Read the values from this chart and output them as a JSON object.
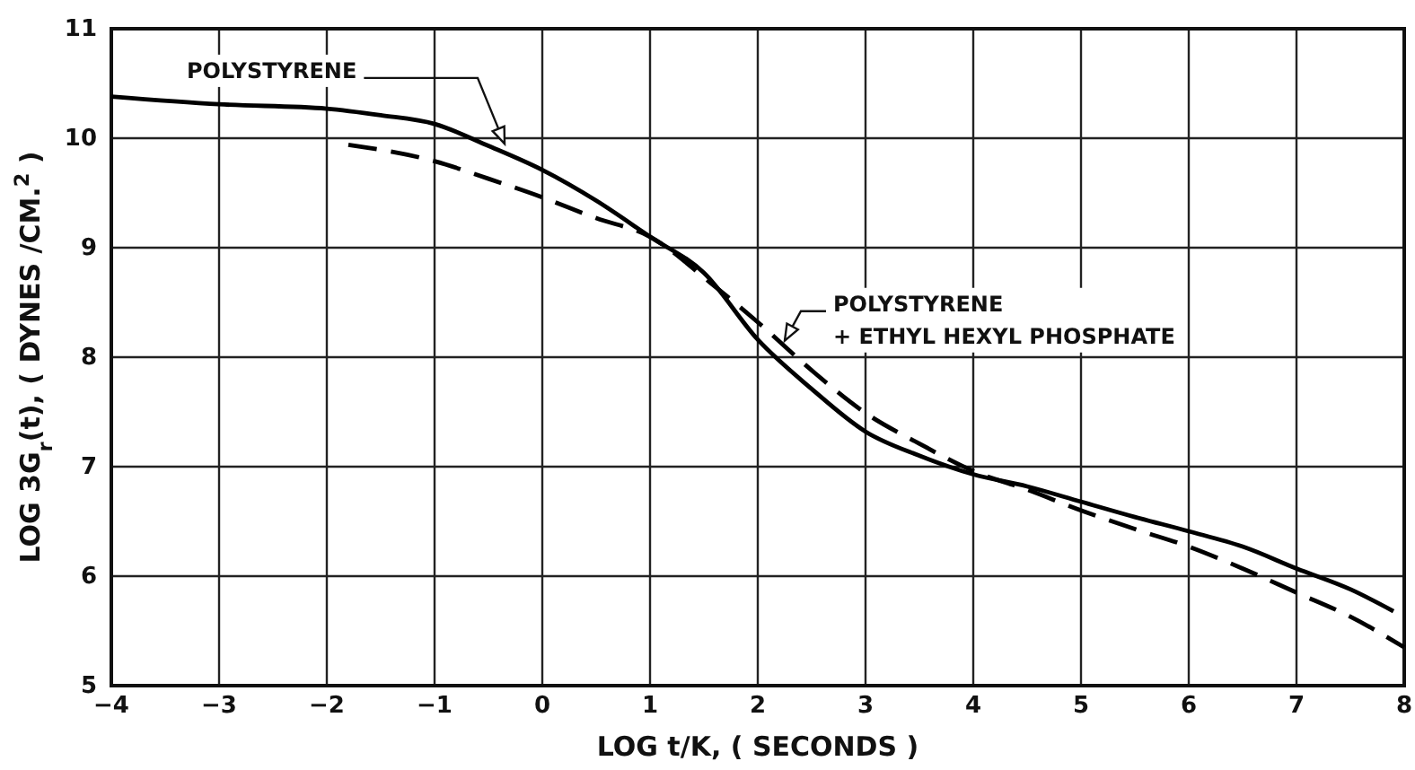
{
  "chart_data": {
    "type": "line",
    "xlabel": "LOG t/K, ( SECONDS )",
    "ylabel": "LOG 3G$_{r}$(t), ( DYNES /CM.$^{2}$ )",
    "xlim": [
      -4,
      8
    ],
    "ylim": [
      5,
      11
    ],
    "xticks": [
      -4,
      -3,
      -2,
      -1,
      0,
      1,
      2,
      3,
      4,
      5,
      6,
      7,
      8
    ],
    "yticks": [
      5,
      6,
      7,
      8,
      9,
      10,
      11
    ],
    "grid": true,
    "series": [
      {
        "name": "POLYSTYRENE",
        "color": "#000000",
        "line_style": "solid",
        "x": [
          -4,
          -3,
          -2,
          -1.5,
          -1,
          -0.5,
          0,
          0.5,
          1,
          1.5,
          2,
          2.5,
          3,
          3.5,
          4,
          4.5,
          5,
          5.5,
          6,
          6.5,
          7,
          7.5,
          7.9
        ],
        "values": [
          10.38,
          10.31,
          10.27,
          10.21,
          10.13,
          9.93,
          9.71,
          9.43,
          9.1,
          8.77,
          8.16,
          7.71,
          7.32,
          7.1,
          6.93,
          6.82,
          6.68,
          6.54,
          6.41,
          6.27,
          6.07,
          5.88,
          5.68
        ]
      },
      {
        "name": "POLYSTYRENE + ETHYL HEXYL PHOSPHATE",
        "color": "#000000",
        "line_style": "dashed",
        "x": [
          -1.8,
          -1,
          -0.5,
          0,
          0.5,
          1,
          1.56,
          2,
          2.5,
          3,
          3.5,
          4,
          4.5,
          5,
          5.5,
          6,
          6.5,
          7,
          7.5,
          8
        ],
        "values": [
          9.94,
          9.79,
          9.63,
          9.46,
          9.27,
          9.1,
          8.68,
          8.32,
          7.88,
          7.49,
          7.21,
          6.96,
          6.79,
          6.6,
          6.43,
          6.27,
          6.07,
          5.85,
          5.63,
          5.35
        ]
      }
    ]
  }
}
